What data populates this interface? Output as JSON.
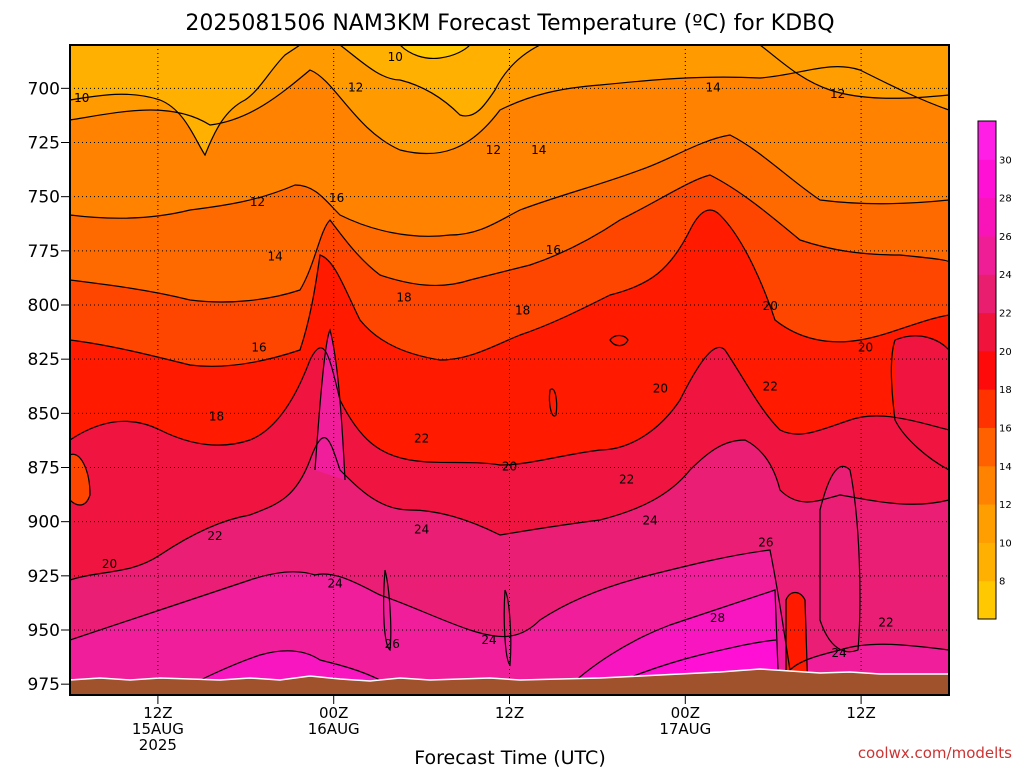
{
  "chart_data": {
    "type": "heatmap",
    "title": "2025081506 NAM3KM Forecast Temperature (ºC) for KDBQ",
    "xlabel": "Forecast Time (UTC)",
    "ylabel": "",
    "y_ticks": [
      "700",
      "725",
      "750",
      "775",
      "800",
      "825",
      "850",
      "875",
      "900",
      "925",
      "950",
      "975"
    ],
    "y_values": [
      700,
      725,
      750,
      775,
      800,
      825,
      850,
      875,
      900,
      925,
      950,
      975
    ],
    "ylim": [
      980,
      680
    ],
    "x_ticks": [
      {
        "hour": 6,
        "lines": [
          "12Z",
          "15AUG",
          "2025"
        ]
      },
      {
        "hour": 18,
        "lines": [
          "00Z",
          "16AUG"
        ]
      },
      {
        "hour": 30,
        "lines": [
          "12Z"
        ]
      },
      {
        "hour": 42,
        "lines": [
          "00Z",
          "17AUG"
        ]
      },
      {
        "hour": 54,
        "lines": [
          "12Z"
        ]
      }
    ],
    "xlim": [
      0,
      60
    ],
    "colorbar": {
      "levels": [
        8,
        10,
        12,
        14,
        16,
        18,
        20,
        22,
        24,
        26,
        28,
        30
      ],
      "colors": [
        "#ffc800",
        "#ffb000",
        "#ff9e00",
        "#ff8200",
        "#ff6000",
        "#ff3200",
        "#ff0a0a",
        "#f0143c",
        "#ea1e6e",
        "#f01e96",
        "#f814b8",
        "#ff10d4",
        "#ff1ee6"
      ]
    },
    "grid": true,
    "contour_interval": 2,
    "contour_labels": [
      {
        "t": 0.8,
        "p": 705,
        "v": "10"
      },
      {
        "t": 22.2,
        "p": 686,
        "v": "10"
      },
      {
        "t": 19.5,
        "p": 700,
        "v": "12"
      },
      {
        "t": 12.8,
        "p": 753,
        "v": "12"
      },
      {
        "t": 28.9,
        "p": 729,
        "v": "12"
      },
      {
        "t": 32.0,
        "p": 729,
        "v": "14"
      },
      {
        "t": 43.9,
        "p": 700,
        "v": "14"
      },
      {
        "t": 52.4,
        "p": 703,
        "v": "12"
      },
      {
        "t": 14.0,
        "p": 778,
        "v": "14"
      },
      {
        "t": 18.2,
        "p": 751,
        "v": "16"
      },
      {
        "t": 33.0,
        "p": 775,
        "v": "16"
      },
      {
        "t": 12.9,
        "p": 820,
        "v": "16"
      },
      {
        "t": 22.8,
        "p": 797,
        "v": "18"
      },
      {
        "t": 30.9,
        "p": 803,
        "v": "18"
      },
      {
        "t": 10.0,
        "p": 852,
        "v": "18"
      },
      {
        "t": 47.8,
        "p": 801,
        "v": "20"
      },
      {
        "t": 40.3,
        "p": 839,
        "v": "20"
      },
      {
        "t": 54.3,
        "p": 820,
        "v": "20"
      },
      {
        "t": 47.8,
        "p": 838,
        "v": "22"
      },
      {
        "t": 24.0,
        "p": 862,
        "v": "22"
      },
      {
        "t": 30.0,
        "p": 875,
        "v": "20"
      },
      {
        "t": 38.0,
        "p": 881,
        "v": "22"
      },
      {
        "t": 9.9,
        "p": 907,
        "v": "22"
      },
      {
        "t": 2.7,
        "p": 920,
        "v": "20"
      },
      {
        "t": 24.0,
        "p": 904,
        "v": "24"
      },
      {
        "t": 39.6,
        "p": 900,
        "v": "24"
      },
      {
        "t": 18.1,
        "p": 929,
        "v": "24"
      },
      {
        "t": 47.5,
        "p": 910,
        "v": "26"
      },
      {
        "t": 44.2,
        "p": 945,
        "v": "28"
      },
      {
        "t": 22.0,
        "p": 957,
        "v": "26"
      },
      {
        "t": 28.6,
        "p": 955,
        "v": "24"
      },
      {
        "t": 52.5,
        "p": 961,
        "v": "24"
      },
      {
        "t": 55.7,
        "p": 947,
        "v": "22"
      }
    ],
    "watermark": "coolwx.com/modelts"
  }
}
